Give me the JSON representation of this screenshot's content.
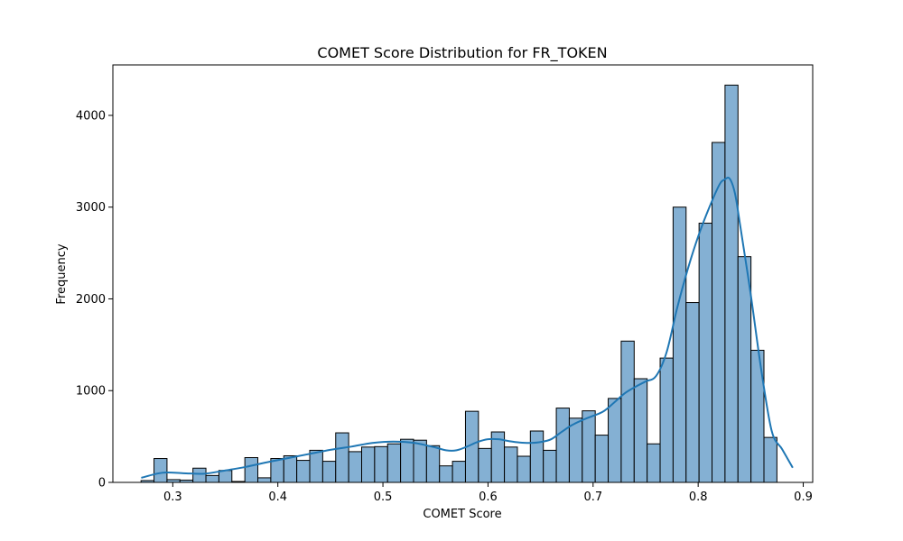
{
  "chart_data": {
    "type": "bar",
    "title": "COMET Score Distribution for FR_TOKEN",
    "xlabel": "COMET Score",
    "ylabel": "Frequency",
    "xlim": [
      0.243,
      0.909
    ],
    "ylim": [
      0,
      4550
    ],
    "x_ticks": [
      0.3,
      0.4,
      0.5,
      0.6,
      0.7,
      0.8,
      0.9
    ],
    "x_tick_labels": [
      "0.3",
      "0.4",
      "0.5",
      "0.6",
      "0.7",
      "0.8",
      "0.9"
    ],
    "y_ticks": [
      0,
      1000,
      2000,
      3000,
      4000
    ],
    "y_tick_labels": [
      "0",
      "1000",
      "2000",
      "3000",
      "4000"
    ],
    "bin_start": 0.2698,
    "bin_width": 0.01235,
    "values": [
      20,
      260,
      30,
      25,
      155,
      75,
      130,
      10,
      270,
      50,
      260,
      290,
      240,
      350,
      230,
      540,
      335,
      385,
      390,
      420,
      470,
      460,
      400,
      180,
      230,
      775,
      370,
      550,
      385,
      285,
      560,
      350,
      810,
      700,
      780,
      515,
      915,
      1540,
      1130,
      420,
      1355,
      3000,
      1960,
      2825,
      3705,
      4330,
      2460,
      1440,
      490
    ],
    "kde": {
      "x": [
        0.27,
        0.29,
        0.31,
        0.33,
        0.35,
        0.37,
        0.39,
        0.41,
        0.43,
        0.45,
        0.47,
        0.49,
        0.51,
        0.53,
        0.55,
        0.56,
        0.57,
        0.58,
        0.59,
        0.6,
        0.61,
        0.62,
        0.63,
        0.64,
        0.65,
        0.66,
        0.67,
        0.68,
        0.69,
        0.7,
        0.71,
        0.72,
        0.73,
        0.74,
        0.75,
        0.76,
        0.77,
        0.78,
        0.79,
        0.8,
        0.81,
        0.82,
        0.825,
        0.83,
        0.835,
        0.84,
        0.85,
        0.86,
        0.87,
        0.88,
        0.89
      ],
      "y": [
        50,
        105,
        100,
        95,
        130,
        170,
        220,
        265,
        310,
        355,
        390,
        430,
        445,
        430,
        380,
        350,
        350,
        390,
        440,
        470,
        470,
        450,
        435,
        430,
        440,
        470,
        550,
        625,
        680,
        725,
        775,
        870,
        970,
        1040,
        1100,
        1160,
        1420,
        1900,
        2320,
        2680,
        2980,
        3240,
        3300,
        3310,
        3150,
        2800,
        2050,
        1230,
        560,
        360,
        160
      ]
    },
    "colors": {
      "bar_fill": "#84b0d3",
      "bar_edge": "#000000",
      "kde_line": "#1f77b4"
    },
    "grid": false,
    "legend": "none"
  }
}
